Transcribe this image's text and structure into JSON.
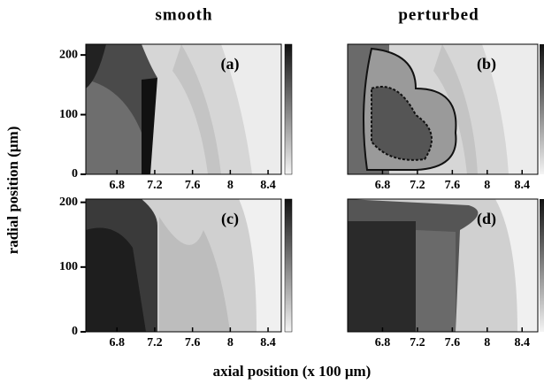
{
  "column_titles": [
    "smooth",
    "perturbed"
  ],
  "ylabel": "radial position (μm)",
  "xlabel": "axial position (x 100 μm)",
  "chart_data": [
    {
      "type": "contour",
      "label": "(a)",
      "xlim": [
        6.47,
        8.54
      ],
      "ylim": [
        0,
        218
      ],
      "xticks": [
        6.8,
        7.2,
        7.6,
        8,
        8.4
      ],
      "yticks": [
        0,
        100,
        200
      ]
    },
    {
      "type": "contour",
      "label": "(b)",
      "xlim": [
        6.4,
        8.58
      ],
      "ylim": [
        0,
        218
      ],
      "xticks": [
        6.8,
        7.2,
        7.6,
        8,
        8.4
      ]
    },
    {
      "type": "contour",
      "label": "(c)",
      "xlim": [
        6.47,
        8.54
      ],
      "ylim": [
        0,
        205
      ],
      "xticks": [
        6.8,
        7.2,
        7.6,
        8,
        8.4
      ],
      "yticks": [
        0,
        100,
        200
      ]
    },
    {
      "type": "contour",
      "label": "(d)",
      "xlim": [
        6.4,
        8.58
      ],
      "ylim": [
        0,
        205
      ],
      "xticks": [
        6.8,
        7.2,
        7.6,
        8,
        8.4
      ]
    }
  ]
}
